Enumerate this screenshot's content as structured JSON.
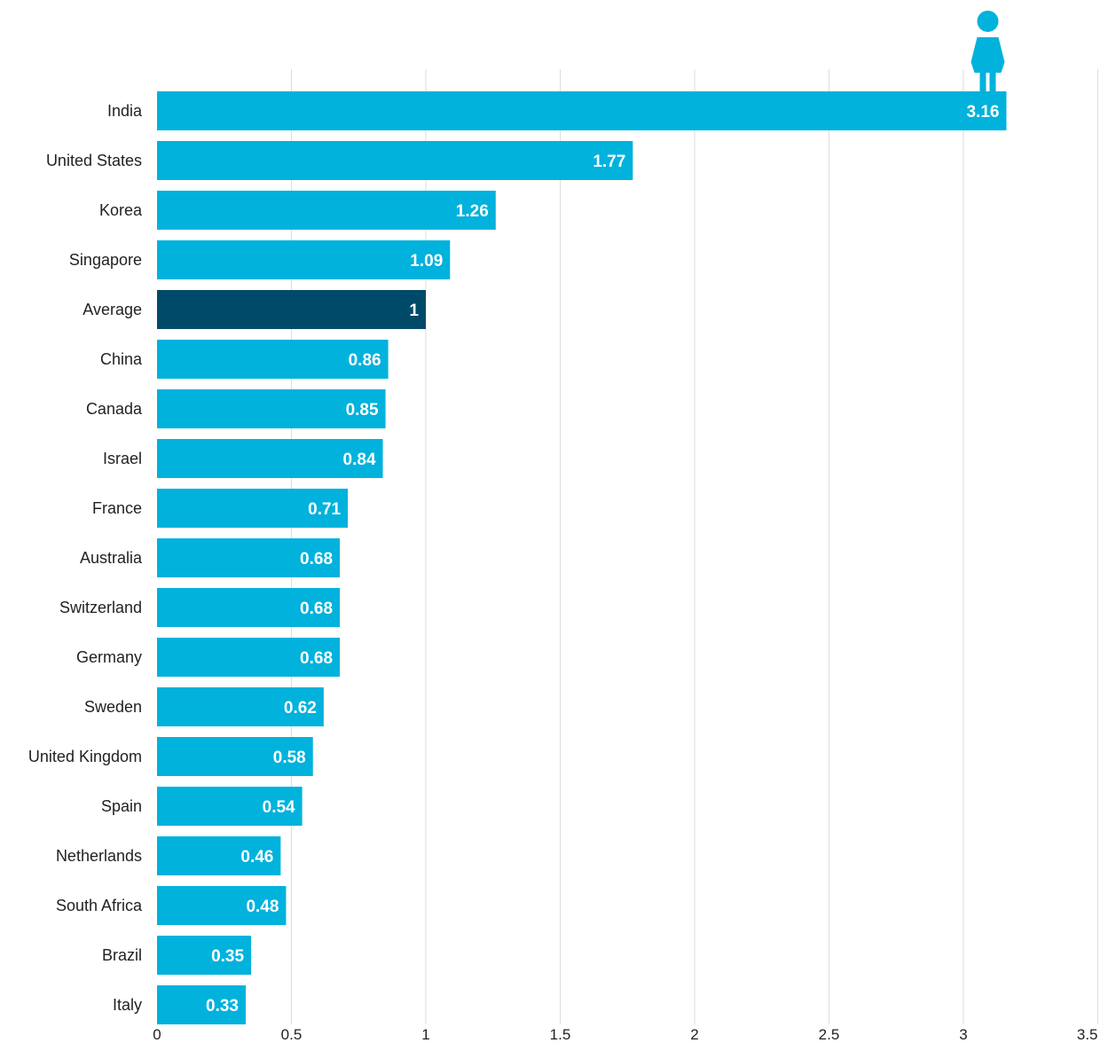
{
  "chart_data": {
    "type": "bar",
    "orientation": "horizontal",
    "title": "",
    "xlabel": "",
    "ylabel": "",
    "xlim": [
      0,
      3.5
    ],
    "xticks": [
      0,
      0.5,
      1,
      1.5,
      2,
      2.5,
      3,
      3.5
    ],
    "xtick_labels": [
      "0",
      "0.5",
      "1",
      "1.5",
      "2",
      "2.5",
      "3",
      "3.5"
    ],
    "grid": "vertical",
    "legend": "none",
    "categories": [
      "India",
      "United States",
      "Korea",
      "Singapore",
      "Average",
      "China",
      "Canada",
      "Israel",
      "France",
      "Australia",
      "Switzerland",
      "Germany",
      "Sweden",
      "United Kingdom",
      "Spain",
      "Netherlands",
      "South Africa",
      "Brazil",
      "Italy"
    ],
    "values": [
      3.16,
      1.77,
      1.26,
      1.09,
      1,
      0.86,
      0.85,
      0.84,
      0.71,
      0.68,
      0.68,
      0.68,
      0.62,
      0.58,
      0.54,
      0.46,
      0.48,
      0.35,
      0.33
    ],
    "value_labels": [
      "3.16",
      "1.77",
      "1.26",
      "1.09",
      "1",
      "0.86",
      "0.85",
      "0.84",
      "0.71",
      "0.68",
      "0.68",
      "0.68",
      "0.62",
      "0.58",
      "0.54",
      "0.46",
      "0.48",
      "0.35",
      "0.33"
    ],
    "highlight_category": "Average",
    "colors": {
      "bar": "#00b2dc",
      "highlight": "#004a69",
      "grid": "#dddddd",
      "icon": "#00b2dc"
    },
    "icon": "person-icon"
  }
}
